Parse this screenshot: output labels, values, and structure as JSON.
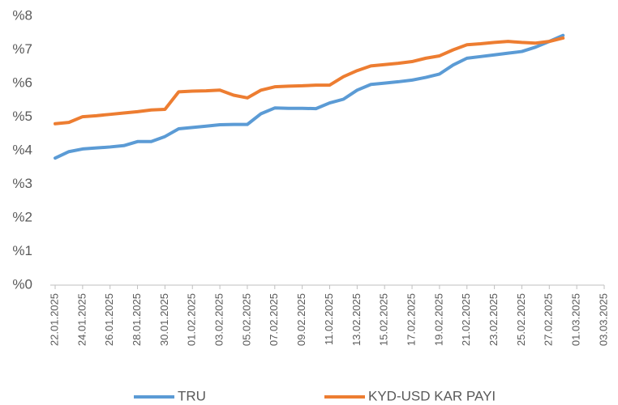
{
  "chart_data": {
    "type": "line",
    "x": [
      "22.01.2025",
      "23.01.2025",
      "24.01.2025",
      "25.01.2025",
      "26.01.2025",
      "27.01.2025",
      "28.01.2025",
      "29.01.2025",
      "30.01.2025",
      "31.01.2025",
      "01.02.2025",
      "02.02.2025",
      "03.02.2025",
      "04.02.2025",
      "05.02.2025",
      "06.02.2025",
      "07.02.2025",
      "08.02.2025",
      "09.02.2025",
      "10.02.2025",
      "11.02.2025",
      "12.02.2025",
      "13.02.2025",
      "14.02.2025",
      "15.02.2025",
      "16.02.2025",
      "17.02.2025",
      "18.02.2025",
      "19.02.2025",
      "20.02.2025",
      "21.02.2025",
      "22.02.2025",
      "23.02.2025",
      "24.02.2025",
      "25.02.2025",
      "26.02.2025",
      "27.02.2025",
      "28.02.2025"
    ],
    "series": [
      {
        "name": "TRU",
        "color": "#5B9BD5",
        "values": [
          3.78,
          3.97,
          4.05,
          4.08,
          4.11,
          4.15,
          4.27,
          4.27,
          4.42,
          4.65,
          4.69,
          4.73,
          4.77,
          4.78,
          4.78,
          5.1,
          5.27,
          5.26,
          5.26,
          5.25,
          5.42,
          5.53,
          5.8,
          5.97,
          6.01,
          6.05,
          6.1,
          6.18,
          6.28,
          6.55,
          6.75,
          6.8,
          6.85,
          6.9,
          6.95,
          7.08,
          7.25,
          7.43
        ]
      },
      {
        "name": "KYD-USD KAR PAYI",
        "color": "#ED7D31",
        "values": [
          4.8,
          4.84,
          5.01,
          5.04,
          5.08,
          5.12,
          5.16,
          5.21,
          5.23,
          5.75,
          5.77,
          5.78,
          5.8,
          5.65,
          5.57,
          5.8,
          5.9,
          5.92,
          5.93,
          5.95,
          5.95,
          6.2,
          6.38,
          6.52,
          6.56,
          6.6,
          6.65,
          6.75,
          6.82,
          7.0,
          7.15,
          7.18,
          7.22,
          7.25,
          7.22,
          7.2,
          7.25,
          7.35
        ]
      }
    ],
    "xlim": [
      "22.01.2025",
      "03.03.2025"
    ],
    "xticks": [
      "22.01.2025",
      "24.01.2025",
      "26.01.2025",
      "28.01.2025",
      "30.01.2025",
      "01.02.2025",
      "03.02.2025",
      "05.02.2025",
      "07.02.2025",
      "09.02.2025",
      "11.02.2025",
      "13.02.2025",
      "15.02.2025",
      "17.02.2025",
      "19.02.2025",
      "21.02.2025",
      "23.02.2025",
      "25.02.2025",
      "27.02.2025",
      "01.03.2025",
      "03.03.2025"
    ],
    "ylim": [
      0,
      8
    ],
    "yticks": [
      {
        "value": 0,
        "label": "%0"
      },
      {
        "value": 1,
        "label": "%1"
      },
      {
        "value": 2,
        "label": "%2"
      },
      {
        "value": 3,
        "label": "%3"
      },
      {
        "value": 4,
        "label": "%4"
      },
      {
        "value": 5,
        "label": "%5"
      },
      {
        "value": 6,
        "label": "%6"
      },
      {
        "value": 7,
        "label": "%7"
      },
      {
        "value": 8,
        "label": "%8"
      }
    ],
    "grid": false,
    "legend": "bottom"
  }
}
